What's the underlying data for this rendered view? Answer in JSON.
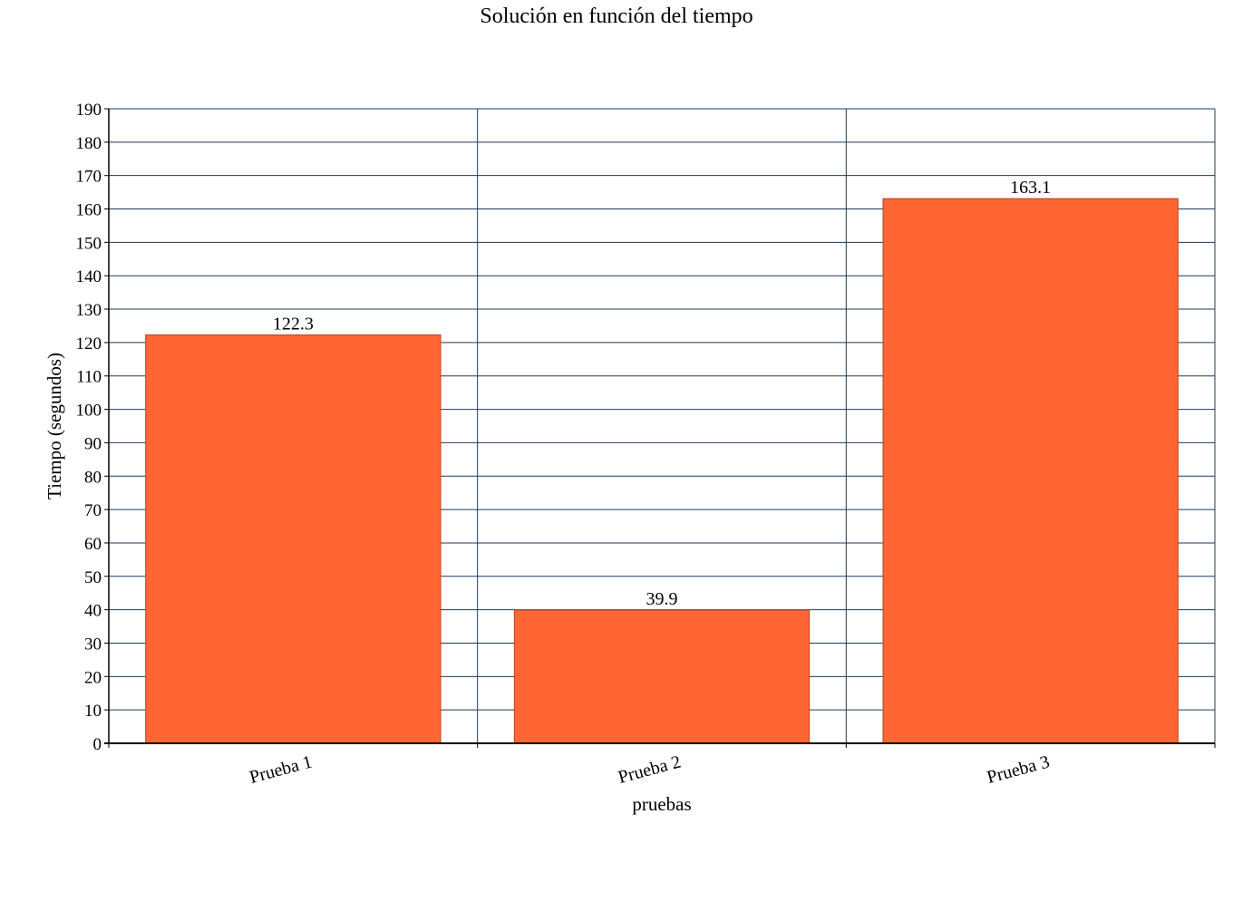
{
  "chart_data": {
    "type": "bar",
    "title": "Solución en función del tiempo",
    "xlabel": "pruebas",
    "ylabel": "Tiempo (segundos)",
    "categories": [
      "Prueba 1",
      "Prueba 2",
      "Prueba 3"
    ],
    "values": [
      122.3,
      39.9,
      163.1
    ],
    "value_labels": [
      "122.3",
      "39.9",
      "163.1"
    ],
    "ylim": [
      0,
      190
    ],
    "ytick_step": 10,
    "grid": true,
    "bar_color": "#ff6633",
    "bar_edge_color": "#b34724",
    "grid_color": "#1f3a5a"
  }
}
